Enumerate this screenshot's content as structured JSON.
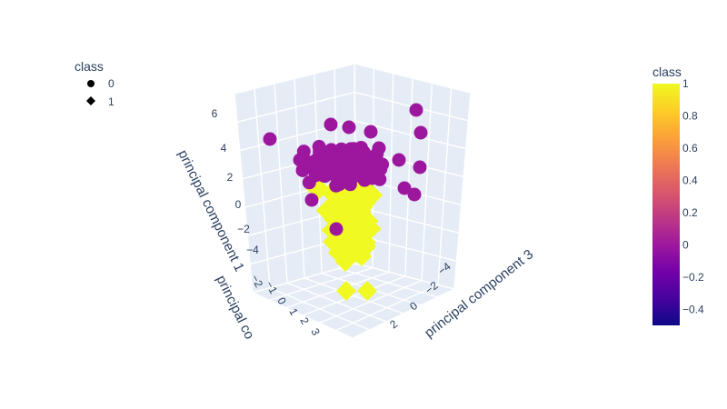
{
  "chart_data": {
    "type": "scatter",
    "dimensions": "3d",
    "legend": {
      "title": "class",
      "placement": "top-left",
      "entries": [
        {
          "label": "0",
          "symbol": "circle"
        },
        {
          "label": "1",
          "symbol": "diamond"
        }
      ]
    },
    "axes": {
      "z": {
        "label": "principal component 1",
        "ticks": [
          "6",
          "4",
          "2",
          "0",
          "−2",
          "−4"
        ]
      },
      "x": {
        "label": "principal co",
        "ticks": [
          "−2",
          "−1",
          "0",
          "1",
          "2",
          "3"
        ]
      },
      "y": {
        "label": "principal component 3",
        "ticks": [
          "−4",
          "−2",
          "0",
          "2"
        ]
      }
    },
    "colorbar": {
      "title": "class",
      "range": [
        -0.5,
        1
      ],
      "ticks": [
        "1",
        "0.8",
        "0.6",
        "0.4",
        "0.2",
        "0",
        "−0.2",
        "−0.4"
      ],
      "tick_values": [
        1,
        0.8,
        0.6,
        0.4,
        0.2,
        0,
        -0.2,
        -0.4
      ]
    },
    "series": [
      {
        "name": "0",
        "symbol": "circle",
        "color": "#9c179e",
        "class_value": 0
      },
      {
        "name": "1",
        "symbol": "diamond",
        "color": "#f0f921",
        "class_value": 1
      }
    ],
    "colorscale": [
      "#0d0887",
      "#46039f",
      "#7201a8",
      "#9c179e",
      "#bd3786",
      "#d8576b",
      "#ed7953",
      "#fb9f3a",
      "#fdca26",
      "#f0f921"
    ]
  }
}
